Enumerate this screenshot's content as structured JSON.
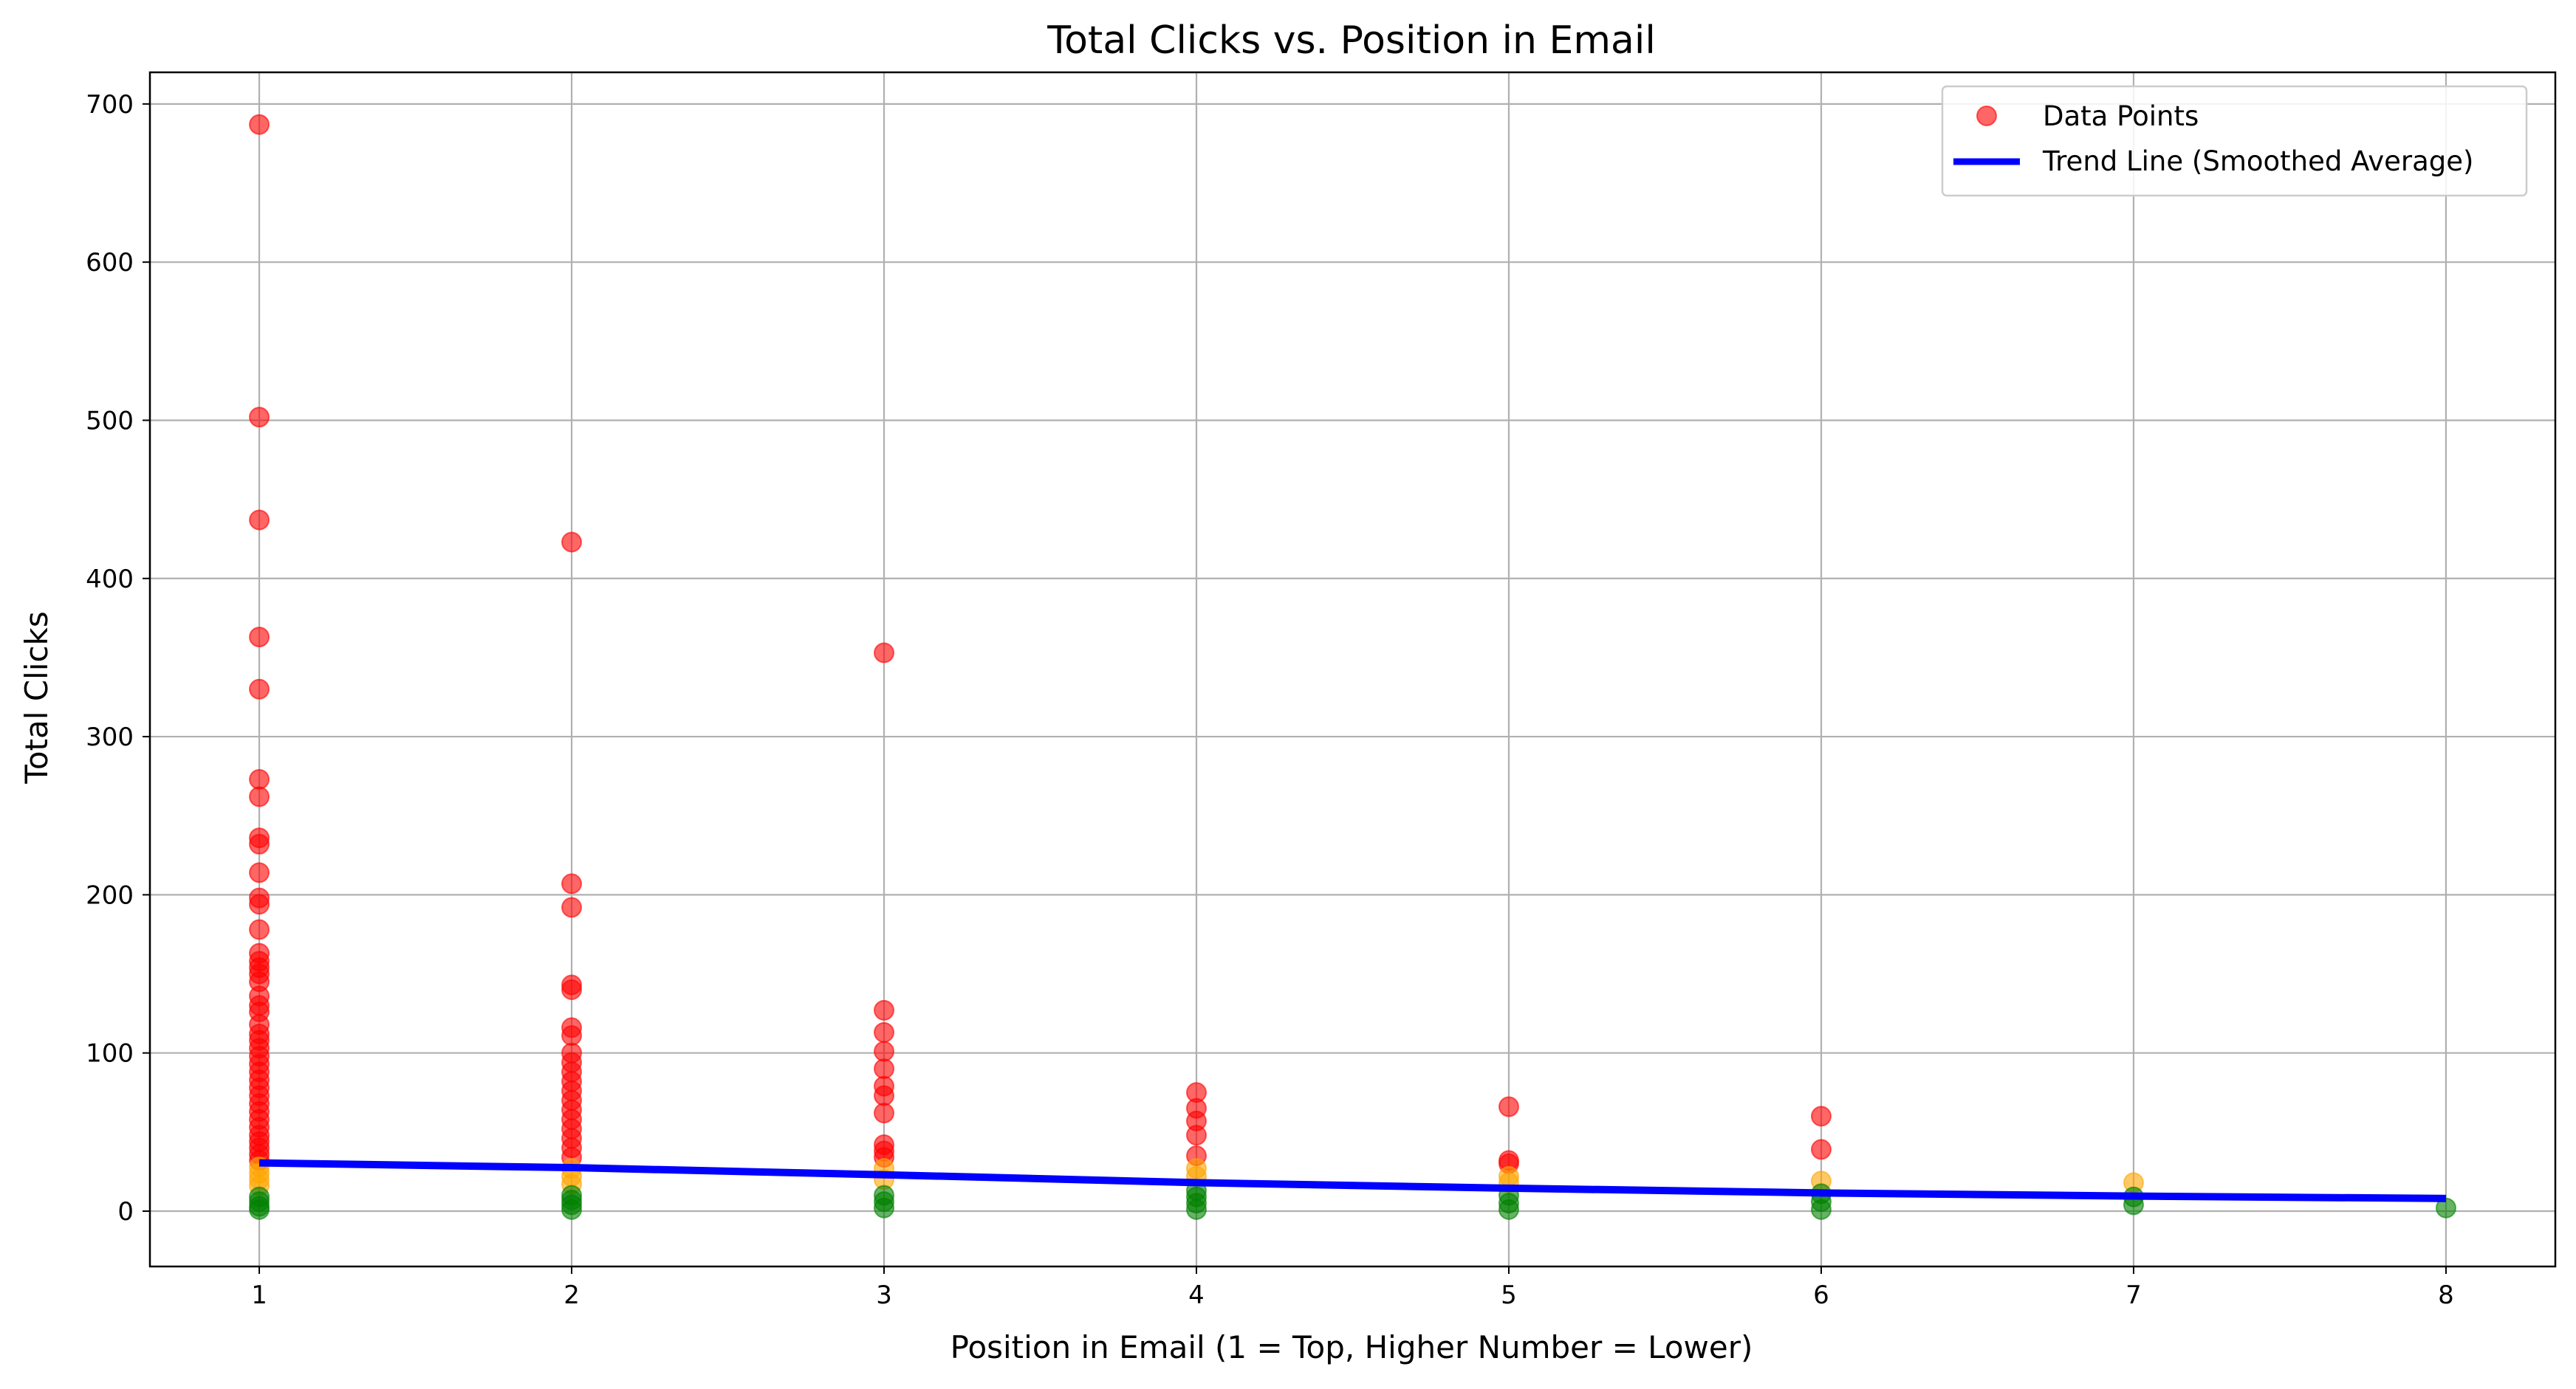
{
  "chart_data": {
    "type": "scatter",
    "title": "Total Clicks vs. Position in Email",
    "xlabel": "Position in Email (1 = Top, Higher Number = Lower)",
    "ylabel": "Total Clicks",
    "xlim": [
      0.65,
      8.35
    ],
    "ylim": [
      -35,
      720
    ],
    "xticks": [
      1,
      2,
      3,
      4,
      5,
      6,
      7,
      8
    ],
    "yticks": [
      0,
      100,
      200,
      300,
      400,
      500,
      600,
      700
    ],
    "grid": true,
    "legend_position": "top-right",
    "colors": {
      "high": "#ff0000",
      "medium": "#ffa500",
      "low": "#008000",
      "trend": "#0000ff"
    },
    "series": [
      {
        "name": "Data Points",
        "kind": "scatter",
        "points": [
          {
            "x": 1,
            "y": 687,
            "c": "high"
          },
          {
            "x": 1,
            "y": 502,
            "c": "high"
          },
          {
            "x": 1,
            "y": 437,
            "c": "high"
          },
          {
            "x": 1,
            "y": 363,
            "c": "high"
          },
          {
            "x": 1,
            "y": 330,
            "c": "high"
          },
          {
            "x": 1,
            "y": 273,
            "c": "high"
          },
          {
            "x": 1,
            "y": 262,
            "c": "high"
          },
          {
            "x": 1,
            "y": 236,
            "c": "high"
          },
          {
            "x": 1,
            "y": 232,
            "c": "high"
          },
          {
            "x": 1,
            "y": 214,
            "c": "high"
          },
          {
            "x": 1,
            "y": 198,
            "c": "high"
          },
          {
            "x": 1,
            "y": 194,
            "c": "high"
          },
          {
            "x": 1,
            "y": 178,
            "c": "high"
          },
          {
            "x": 1,
            "y": 163,
            "c": "high"
          },
          {
            "x": 1,
            "y": 158,
            "c": "high"
          },
          {
            "x": 1,
            "y": 154,
            "c": "high"
          },
          {
            "x": 1,
            "y": 150,
            "c": "high"
          },
          {
            "x": 1,
            "y": 145,
            "c": "high"
          },
          {
            "x": 1,
            "y": 136,
            "c": "high"
          },
          {
            "x": 1,
            "y": 130,
            "c": "high"
          },
          {
            "x": 1,
            "y": 126,
            "c": "high"
          },
          {
            "x": 1,
            "y": 118,
            "c": "high"
          },
          {
            "x": 1,
            "y": 112,
            "c": "high"
          },
          {
            "x": 1,
            "y": 108,
            "c": "high"
          },
          {
            "x": 1,
            "y": 103,
            "c": "high"
          },
          {
            "x": 1,
            "y": 98,
            "c": "high"
          },
          {
            "x": 1,
            "y": 93,
            "c": "high"
          },
          {
            "x": 1,
            "y": 88,
            "c": "high"
          },
          {
            "x": 1,
            "y": 83,
            "c": "high"
          },
          {
            "x": 1,
            "y": 78,
            "c": "high"
          },
          {
            "x": 1,
            "y": 73,
            "c": "high"
          },
          {
            "x": 1,
            "y": 68,
            "c": "high"
          },
          {
            "x": 1,
            "y": 63,
            "c": "high"
          },
          {
            "x": 1,
            "y": 58,
            "c": "high"
          },
          {
            "x": 1,
            "y": 53,
            "c": "high"
          },
          {
            "x": 1,
            "y": 48,
            "c": "high"
          },
          {
            "x": 1,
            "y": 44,
            "c": "high"
          },
          {
            "x": 1,
            "y": 40,
            "c": "high"
          },
          {
            "x": 1,
            "y": 36,
            "c": "high"
          },
          {
            "x": 1,
            "y": 32,
            "c": "high"
          },
          {
            "x": 1,
            "y": 28,
            "c": "medium"
          },
          {
            "x": 1,
            "y": 24,
            "c": "medium"
          },
          {
            "x": 1,
            "y": 20,
            "c": "medium"
          },
          {
            "x": 1,
            "y": 16,
            "c": "medium"
          },
          {
            "x": 1,
            "y": 9,
            "c": "low"
          },
          {
            "x": 1,
            "y": 6,
            "c": "low"
          },
          {
            "x": 1,
            "y": 3,
            "c": "low"
          },
          {
            "x": 1,
            "y": 1,
            "c": "low"
          },
          {
            "x": 2,
            "y": 423,
            "c": "high"
          },
          {
            "x": 2,
            "y": 207,
            "c": "high"
          },
          {
            "x": 2,
            "y": 192,
            "c": "high"
          },
          {
            "x": 2,
            "y": 143,
            "c": "high"
          },
          {
            "x": 2,
            "y": 140,
            "c": "high"
          },
          {
            "x": 2,
            "y": 116,
            "c": "high"
          },
          {
            "x": 2,
            "y": 111,
            "c": "high"
          },
          {
            "x": 2,
            "y": 100,
            "c": "high"
          },
          {
            "x": 2,
            "y": 94,
            "c": "high"
          },
          {
            "x": 2,
            "y": 88,
            "c": "high"
          },
          {
            "x": 2,
            "y": 82,
            "c": "high"
          },
          {
            "x": 2,
            "y": 76,
            "c": "high"
          },
          {
            "x": 2,
            "y": 70,
            "c": "high"
          },
          {
            "x": 2,
            "y": 64,
            "c": "high"
          },
          {
            "x": 2,
            "y": 58,
            "c": "high"
          },
          {
            "x": 2,
            "y": 52,
            "c": "high"
          },
          {
            "x": 2,
            "y": 46,
            "c": "high"
          },
          {
            "x": 2,
            "y": 40,
            "c": "high"
          },
          {
            "x": 2,
            "y": 34,
            "c": "high"
          },
          {
            "x": 2,
            "y": 27,
            "c": "medium"
          },
          {
            "x": 2,
            "y": 22,
            "c": "medium"
          },
          {
            "x": 2,
            "y": 17,
            "c": "medium"
          },
          {
            "x": 2,
            "y": 10,
            "c": "low"
          },
          {
            "x": 2,
            "y": 7,
            "c": "low"
          },
          {
            "x": 2,
            "y": 4,
            "c": "low"
          },
          {
            "x": 2,
            "y": 1,
            "c": "low"
          },
          {
            "x": 3,
            "y": 353,
            "c": "high"
          },
          {
            "x": 3,
            "y": 127,
            "c": "high"
          },
          {
            "x": 3,
            "y": 113,
            "c": "high"
          },
          {
            "x": 3,
            "y": 101,
            "c": "high"
          },
          {
            "x": 3,
            "y": 90,
            "c": "high"
          },
          {
            "x": 3,
            "y": 79,
            "c": "high"
          },
          {
            "x": 3,
            "y": 73,
            "c": "high"
          },
          {
            "x": 3,
            "y": 62,
            "c": "high"
          },
          {
            "x": 3,
            "y": 42,
            "c": "high"
          },
          {
            "x": 3,
            "y": 38,
            "c": "high"
          },
          {
            "x": 3,
            "y": 34,
            "c": "high"
          },
          {
            "x": 3,
            "y": 27,
            "c": "medium"
          },
          {
            "x": 3,
            "y": 20,
            "c": "medium"
          },
          {
            "x": 3,
            "y": 10,
            "c": "low"
          },
          {
            "x": 3,
            "y": 6,
            "c": "low"
          },
          {
            "x": 3,
            "y": 2,
            "c": "low"
          },
          {
            "x": 4,
            "y": 75,
            "c": "high"
          },
          {
            "x": 4,
            "y": 65,
            "c": "high"
          },
          {
            "x": 4,
            "y": 57,
            "c": "high"
          },
          {
            "x": 4,
            "y": 48,
            "c": "high"
          },
          {
            "x": 4,
            "y": 35,
            "c": "high"
          },
          {
            "x": 4,
            "y": 27,
            "c": "medium"
          },
          {
            "x": 4,
            "y": 22,
            "c": "medium"
          },
          {
            "x": 4,
            "y": 13,
            "c": "low"
          },
          {
            "x": 4,
            "y": 9,
            "c": "low"
          },
          {
            "x": 4,
            "y": 5,
            "c": "low"
          },
          {
            "x": 4,
            "y": 1,
            "c": "low"
          },
          {
            "x": 5,
            "y": 66,
            "c": "high"
          },
          {
            "x": 5,
            "y": 32,
            "c": "high"
          },
          {
            "x": 5,
            "y": 30,
            "c": "high"
          },
          {
            "x": 5,
            "y": 22,
            "c": "medium"
          },
          {
            "x": 5,
            "y": 18,
            "c": "medium"
          },
          {
            "x": 5,
            "y": 10,
            "c": "low"
          },
          {
            "x": 5,
            "y": 5,
            "c": "low"
          },
          {
            "x": 5,
            "y": 1,
            "c": "low"
          },
          {
            "x": 6,
            "y": 60,
            "c": "high"
          },
          {
            "x": 6,
            "y": 39,
            "c": "high"
          },
          {
            "x": 6,
            "y": 19,
            "c": "medium"
          },
          {
            "x": 6,
            "y": 11,
            "c": "low"
          },
          {
            "x": 6,
            "y": 6,
            "c": "low"
          },
          {
            "x": 6,
            "y": 1,
            "c": "low"
          },
          {
            "x": 7,
            "y": 18,
            "c": "medium"
          },
          {
            "x": 7,
            "y": 9,
            "c": "low"
          },
          {
            "x": 7,
            "y": 4,
            "c": "low"
          },
          {
            "x": 8,
            "y": 2,
            "c": "low"
          }
        ]
      },
      {
        "name": "Trend Line (Smoothed Average)",
        "kind": "line",
        "x": [
          1,
          2,
          3,
          4,
          5,
          6,
          7,
          8
        ],
        "y": [
          30.5,
          27.5,
          23,
          18,
          14.5,
          11.5,
          9.5,
          8
        ]
      }
    ]
  }
}
